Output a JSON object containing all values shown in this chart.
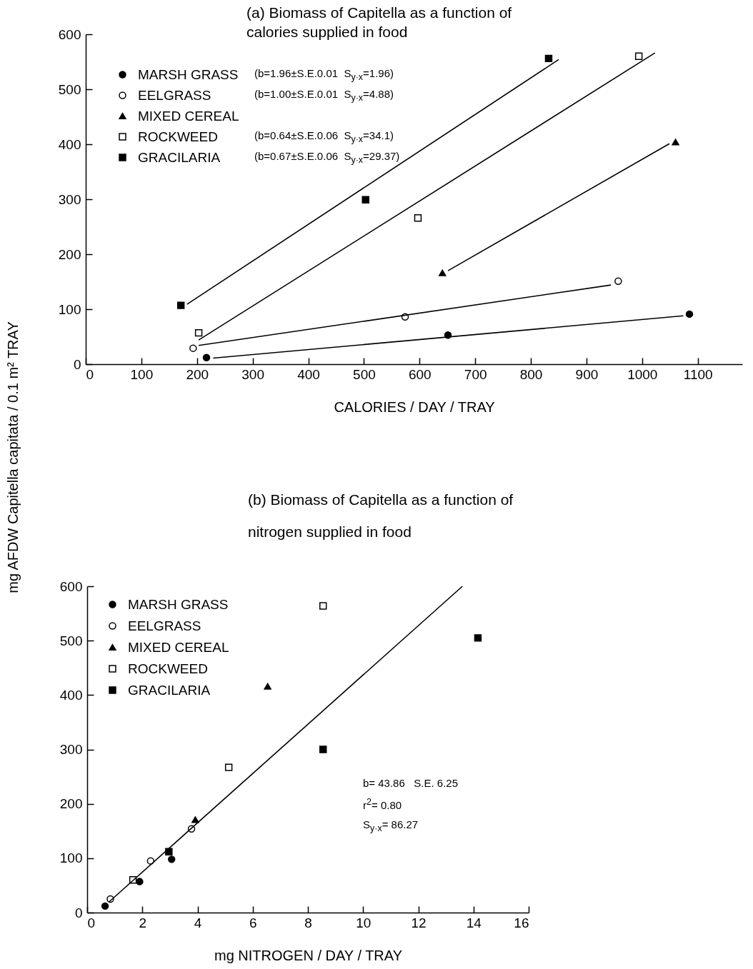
{
  "chart_data": [
    {
      "type": "scatter",
      "title": "(a) Biomass of Capitella as a function of\ncalories supplied in food",
      "xlabel": "CALORIES / DAY / TRAY",
      "ylabel": "mg AFDW Capitella capitata / 0.1 m² TRAY",
      "xlim": [
        0,
        1180
      ],
      "xticks": [
        0,
        100,
        200,
        300,
        400,
        500,
        600,
        700,
        800,
        900,
        1000,
        1100
      ],
      "ylim": [
        0,
        600
      ],
      "yticks": [
        0,
        100,
        200,
        300,
        400,
        500,
        600
      ],
      "grid": false,
      "legend": "top left",
      "series": [
        {
          "name": "MARSH GRASS",
          "color": "#000000",
          "marker": "circle",
          "x": [
            217,
            651,
            1085
          ],
          "values": [
            12,
            53,
            91
          ]
        },
        {
          "name": "EELGRASS",
          "color": "#000000",
          "marker": "circle-open",
          "x": [
            193,
            574,
            957
          ],
          "values": [
            29,
            86,
            151
          ]
        },
        {
          "name": "MIXED CEREAL",
          "color": "#000000",
          "marker": "triangle",
          "x": [
            641,
            1060
          ],
          "values": [
            166,
            404
          ]
        },
        {
          "name": "ROCKWEED",
          "color": "#000000",
          "marker": "square-open",
          "x": [
            203,
            597,
            994
          ],
          "values": [
            57,
            266,
            560
          ]
        },
        {
          "name": "GRACILARIA",
          "color": "#000000",
          "marker": "square",
          "x": [
            171,
            503,
            832
          ],
          "values": [
            107,
            299,
            556
          ]
        },
        {
          "type": "line",
          "color": "#000000",
          "line_style": "solid",
          "x": [
            229,
            1074
          ],
          "values": [
            11,
            88
          ]
        },
        {
          "type": "line",
          "color": "#000000",
          "line_style": "solid",
          "x": [
            203,
            944
          ],
          "values": [
            34,
            144
          ]
        },
        {
          "type": "line",
          "color": "#000000",
          "line_style": "solid",
          "x": [
            651,
            1049
          ],
          "values": [
            170,
            401
          ]
        },
        {
          "type": "line",
          "color": "#000000",
          "line_style": "solid",
          "x": [
            203,
            1023
          ],
          "values": [
            44,
            566
          ]
        },
        {
          "type": "line",
          "color": "#000000",
          "line_style": "solid",
          "x": [
            182,
            850
          ],
          "values": [
            109,
            554
          ]
        }
      ],
      "annotations": [
        "(b=1.96±S.E.0.01  S$_{y·x}$=1.96)",
        "(b=1.00±S.E.0.01  S$_{y·x}$=4.88)",
        "(b=0.64±S.E.0.06  S$_{y·x}$=34.1)",
        "(b=0.67±S.E.0.06  S$_{y·x}$=29.37)"
      ]
    },
    {
      "type": "scatter",
      "title": "(b) Biomass of Capitella as a function of\nnitrogen supplied in food",
      "xlabel": "mg NITROGEN / DAY / TRAY",
      "xlim": [
        0,
        16
      ],
      "xticks": [
        0,
        2,
        4,
        6,
        8,
        10,
        12,
        14,
        16
      ],
      "ylim": [
        0,
        600
      ],
      "yticks": [
        0,
        100,
        200,
        300,
        400,
        500,
        600
      ],
      "grid": false,
      "legend": "top left",
      "series": [
        {
          "name": "MARSH GRASS",
          "color": "#000000",
          "marker": "circle",
          "x": [
            0.65,
            1.9,
            3.06
          ],
          "values": [
            12,
            57,
            98
          ]
        },
        {
          "name": "EELGRASS",
          "color": "#000000",
          "marker": "circle-open",
          "x": [
            0.84,
            2.3,
            3.78
          ],
          "values": [
            25,
            95,
            154
          ]
        },
        {
          "name": "MIXED CEREAL",
          "color": "#000000",
          "marker": "triangle",
          "x": [
            3.92,
            6.54
          ],
          "values": [
            171,
            416
          ]
        },
        {
          "name": "ROCKWEED",
          "color": "#000000",
          "marker": "square-open",
          "x": [
            1.66,
            5.13,
            8.55
          ],
          "values": [
            60,
            267,
            564
          ]
        },
        {
          "name": "GRACILARIA",
          "color": "#000000",
          "marker": "square",
          "x": [
            2.96,
            8.55,
            14.16
          ],
          "values": [
            112,
            300,
            505
          ]
        },
        {
          "type": "line",
          "color": "#000000",
          "line_style": "solid",
          "x": [
            0.8,
            13.6
          ],
          "values": [
            20,
            600
          ]
        }
      ],
      "annotations": [
        "b= 43.86   S.E. 6.25",
        "r$^{2}$= 0.80",
        "S$_{y·x}$= 86.27"
      ]
    }
  ]
}
